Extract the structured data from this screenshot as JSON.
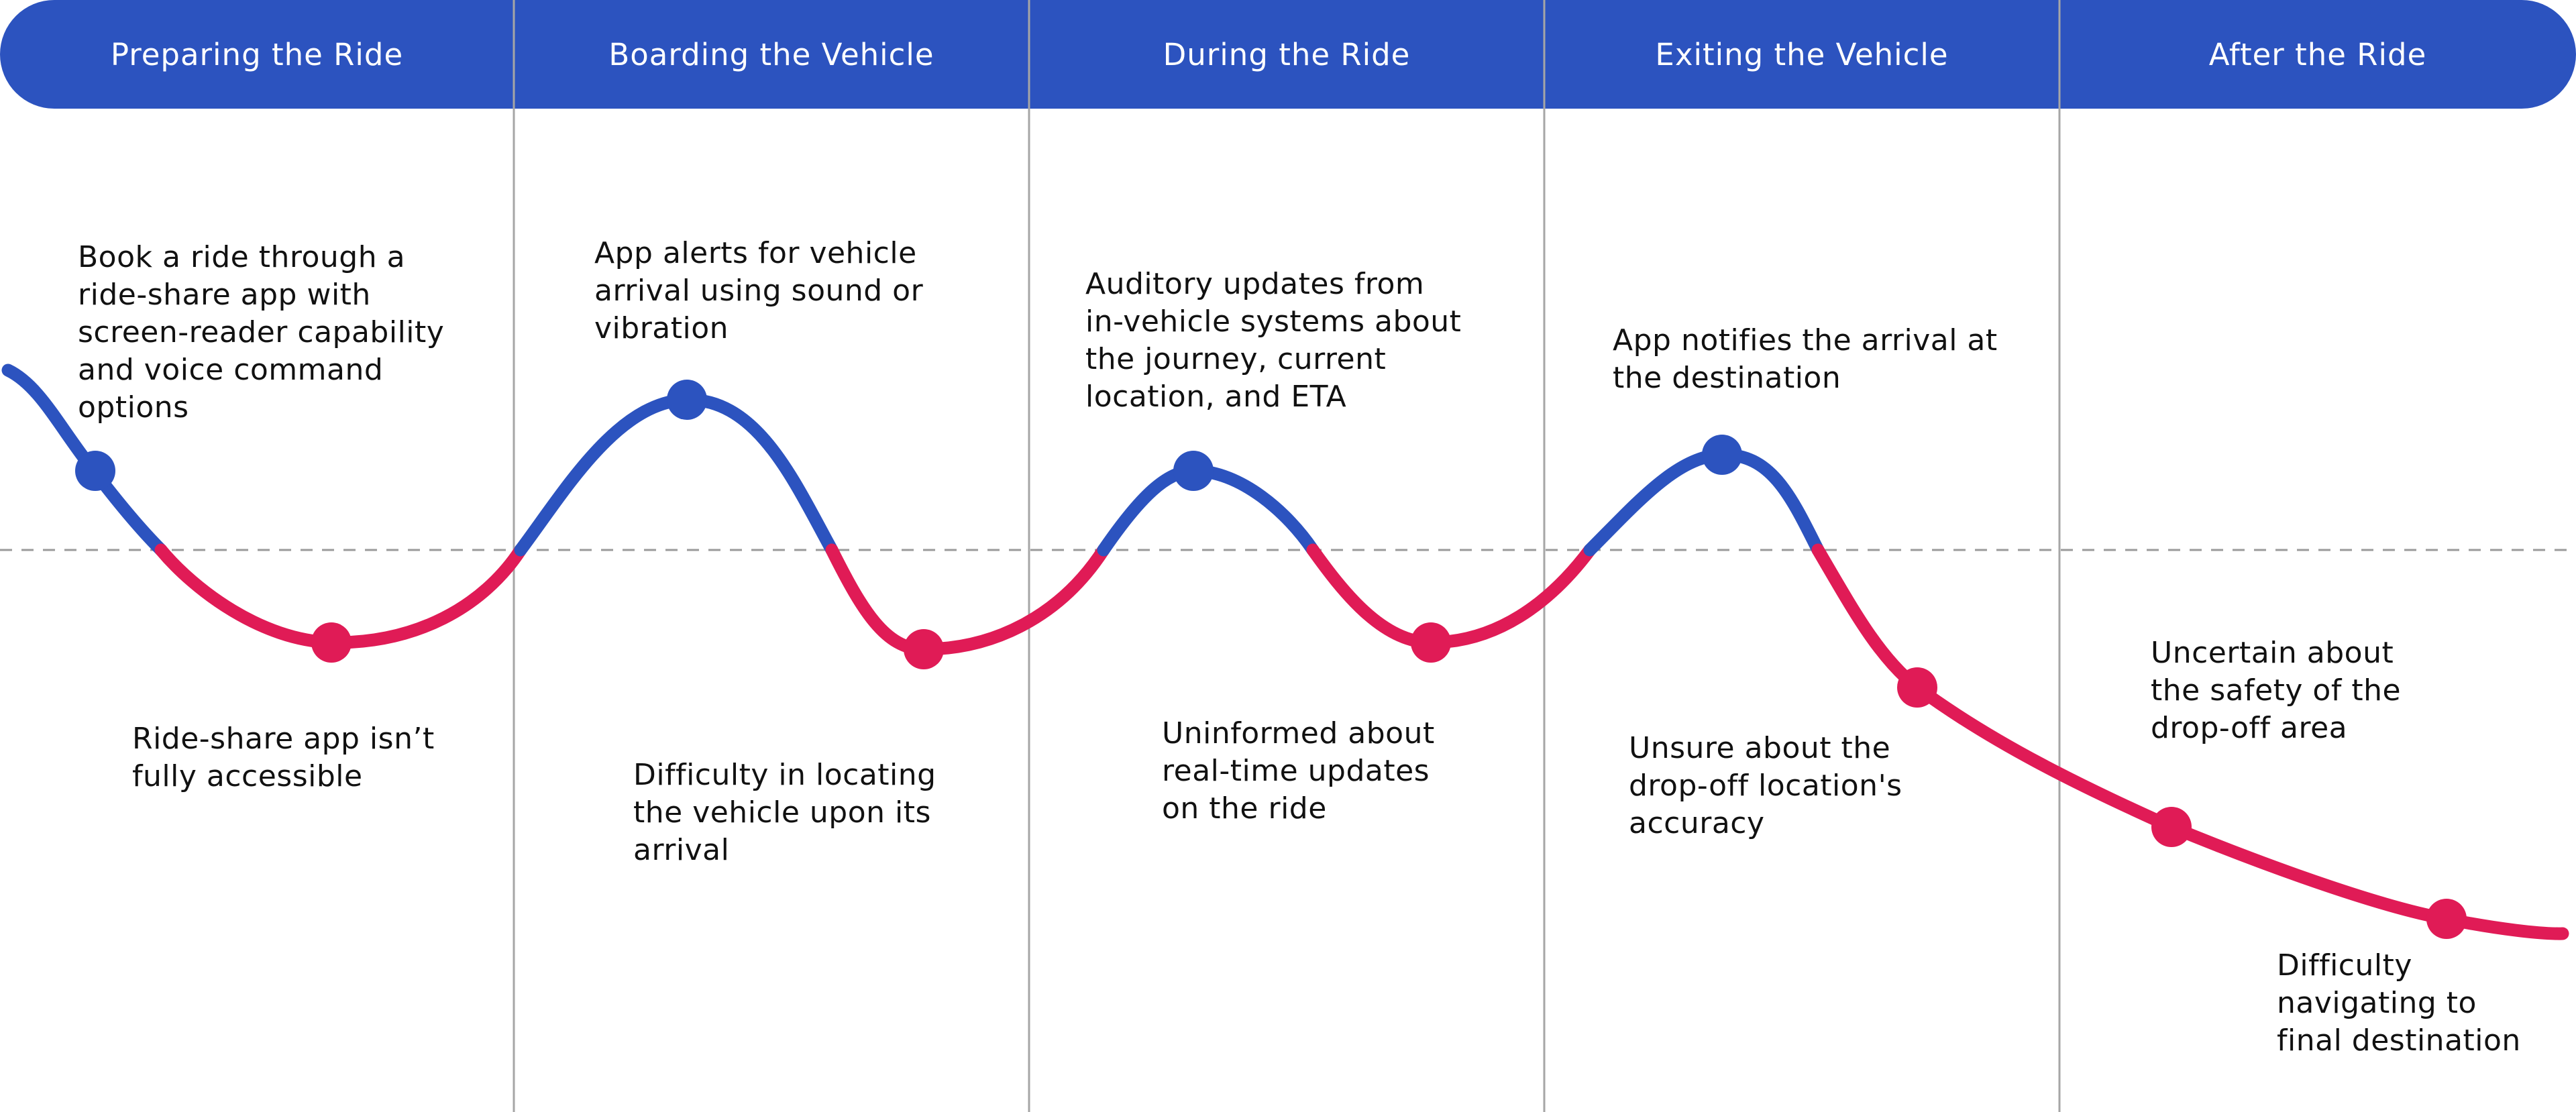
{
  "colors": {
    "header_bg": "#2c53bf",
    "header_text": "#ffffff",
    "positive": "#2c53bf",
    "negative": "#e01b56",
    "divider": "#a6a6a6",
    "baseline": "#9a9a9a",
    "text": "#111111"
  },
  "phases": [
    {
      "label": "Preparing the Ride"
    },
    {
      "label": "Boarding the Vehicle"
    },
    {
      "label": "During the Ride"
    },
    {
      "label": "Exiting the Vehicle"
    },
    {
      "label": "After the Ride"
    }
  ],
  "touchpoints": [
    {
      "text": "Book a ride through a\nride-share app with\nscreen-reader capability\nand voice command\noptions",
      "sentiment": "positive"
    },
    {
      "text": "Ride-share app isn’t\nfully accessible",
      "sentiment": "negative"
    },
    {
      "text": "App alerts for vehicle\narrival using sound or\nvibration",
      "sentiment": "positive"
    },
    {
      "text": "Difficulty in locating\nthe vehicle upon its\narrival",
      "sentiment": "negative"
    },
    {
      "text": "Auditory updates from\nin-vehicle systems about\nthe journey, current\nlocation, and ETA",
      "sentiment": "positive"
    },
    {
      "text": "Uninformed about\nreal-time updates\non the ride",
      "sentiment": "negative"
    },
    {
      "text": "App notifies the arrival at\nthe destination",
      "sentiment": "positive"
    },
    {
      "text": "Unsure about the\ndrop-off location's\naccuracy",
      "sentiment": "negative"
    },
    {
      "text": "Uncertain about\nthe safety of the\ndrop-off area",
      "sentiment": "negative"
    },
    {
      "text": "Difficulty\nnavigating to\nfinal destination",
      "sentiment": "negative"
    }
  ]
}
